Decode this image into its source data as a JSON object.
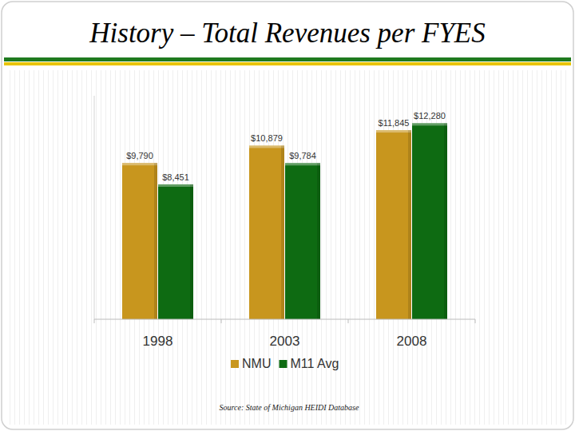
{
  "chart_data": {
    "type": "bar",
    "title": "History – Total Revenues per FYES",
    "categories": [
      "1998",
      "2003",
      "2008"
    ],
    "series": [
      {
        "name": "NMU",
        "color": "#c8961e",
        "values": [
          9790,
          10879,
          11845
        ],
        "value_labels": [
          "$9,790",
          "$10,879",
          "$11,845"
        ]
      },
      {
        "name": "M11 Avg",
        "color": "#0e6b12",
        "values": [
          8451,
          9784,
          12280
        ],
        "value_labels": [
          "$8,451",
          "$9,784",
          "$12,280"
        ]
      }
    ],
    "ylim": [
      0,
      14000
    ],
    "grid": false,
    "data_labels": true,
    "tick_labels": "x",
    "legend": "bottom",
    "annotations": [
      "Source: State of Michigan HEIDI Database"
    ]
  }
}
